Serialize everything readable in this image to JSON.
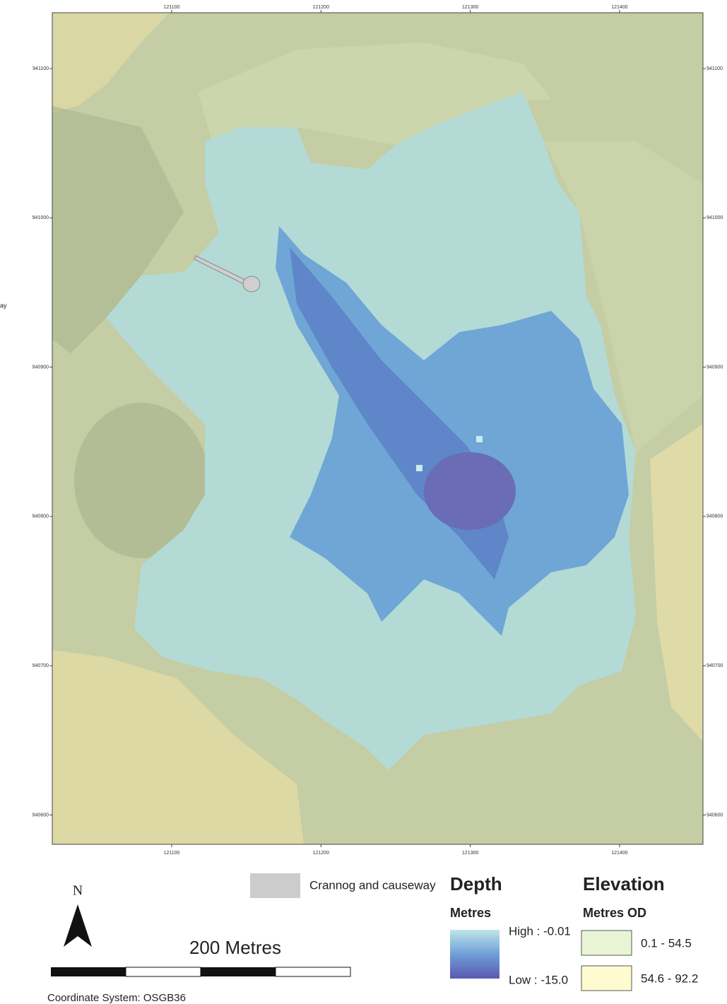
{
  "map": {
    "cut_label": "ay",
    "xticks": [
      "121100",
      "121200",
      "121300",
      "121400"
    ],
    "yticks": [
      "941100",
      "941000",
      "940900",
      "940800",
      "940700",
      "940600"
    ],
    "legend": {
      "feature": "Crannog and causeway",
      "depth": {
        "title": "Depth",
        "unit": "Metres",
        "high": "High : -0.01",
        "low": "Low : -15.0"
      },
      "elevation": {
        "title": "Elevation",
        "unit": "Metres OD",
        "classes": [
          "0.1 - 54.5",
          "54.6 - 92.2"
        ]
      }
    },
    "north": "N",
    "scale": "200 Metres",
    "coordinate_system": "Coordinate System: OSGB36"
  }
}
